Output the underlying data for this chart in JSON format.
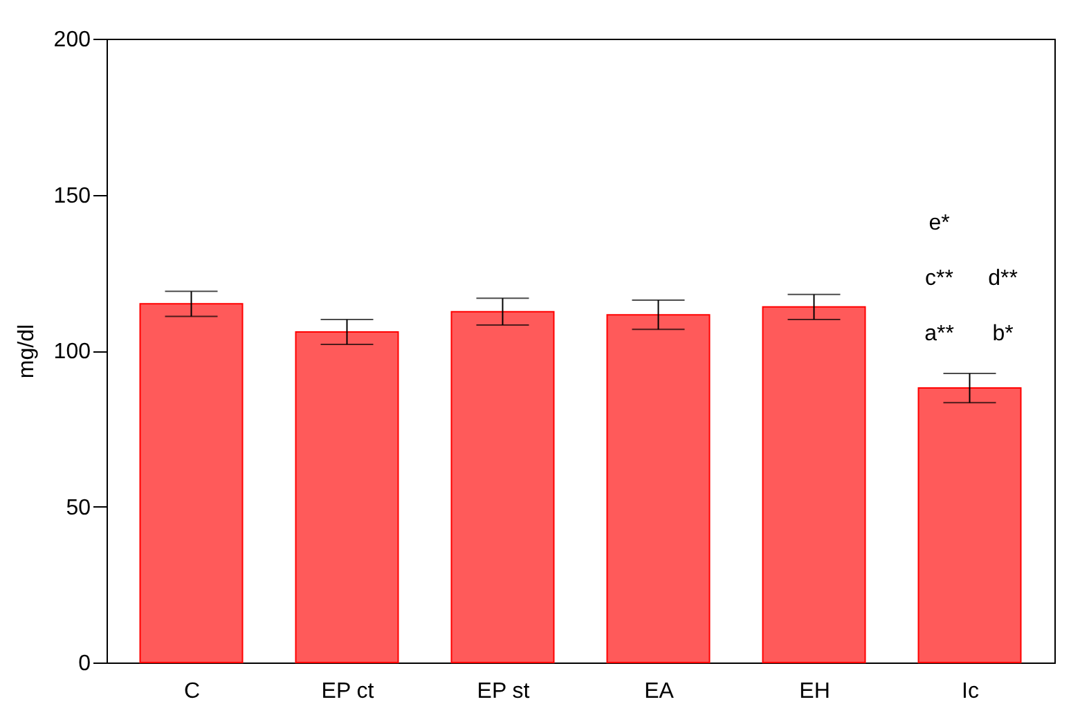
{
  "chart_data": {
    "type": "bar",
    "ylabel": "mg/dl",
    "categories": [
      "C",
      "EP ct",
      "EP st",
      "EA",
      "EH",
      "Ic"
    ],
    "values": [
      115,
      106,
      112.5,
      111.5,
      114,
      88
    ],
    "errors": [
      4,
      4,
      4.3,
      4.7,
      4,
      4.7
    ],
    "color": "#ff5a5a",
    "ylim": [
      0,
      200
    ],
    "yticks": [
      0,
      50,
      100,
      150,
      200
    ],
    "grid": false,
    "annotations": [
      "a**",
      "b*",
      "c**",
      "d**",
      "e*"
    ]
  }
}
